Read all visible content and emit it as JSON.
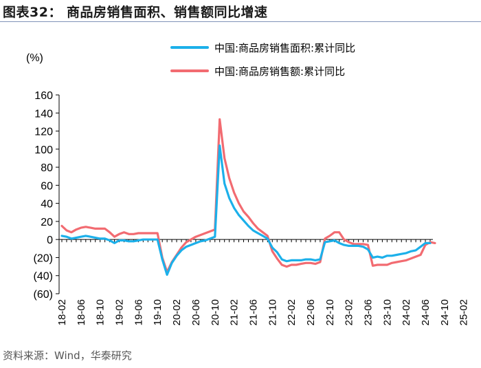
{
  "figure": {
    "title": "图表32：   商品房销售面积、销售额同比增速",
    "source": "资料来源：Wind，华泰研究"
  },
  "chart_data": {
    "type": "line",
    "title": "",
    "ylabel": "(%)",
    "xlabel": "",
    "ylim": [
      -60,
      160
    ],
    "y_ticks": [
      160,
      140,
      120,
      100,
      80,
      60,
      40,
      20,
      0,
      -20,
      -40,
      -60
    ],
    "y_tick_labels": [
      "160",
      "140",
      "120",
      "100",
      "80",
      "60",
      "40",
      "20",
      "0",
      "(20)",
      "(40)",
      "(60)"
    ],
    "x_tick_labels": [
      "18-02",
      "18-06",
      "18-10",
      "19-02",
      "19-06",
      "19-10",
      "20-02",
      "20-06",
      "20-10",
      "21-02",
      "21-06",
      "21-10",
      "22-02",
      "22-06",
      "22-10",
      "23-02",
      "23-06",
      "23-10",
      "24-02",
      "24-06",
      "24-10",
      "25-02"
    ],
    "legend_position": "top-right",
    "grid": false,
    "series": [
      {
        "name": "中国:商品房销售面积:累计同比",
        "color": "#1cb0ea",
        "values": [
          4,
          3,
          1,
          2,
          3,
          4,
          3,
          2,
          1,
          1,
          -1,
          -4,
          -1,
          -1,
          -2,
          -2,
          -1,
          0,
          0,
          0,
          0,
          -22,
          -39,
          -26,
          -18,
          -12,
          -8,
          -6,
          -4,
          -2,
          -1,
          1,
          3,
          104,
          62,
          46,
          35,
          27,
          21,
          15,
          10,
          7,
          4,
          1,
          -9,
          -14,
          -22,
          -24,
          -23,
          -23,
          -23,
          -22,
          -22,
          -23,
          -22,
          -3,
          -2,
          -1,
          -4,
          -6,
          -7,
          -7,
          -7,
          -8,
          -11,
          -20,
          -19,
          -20,
          -18,
          -18,
          -17,
          -16,
          -15,
          -13,
          -12,
          -8,
          -4,
          -4
        ],
        "labels": []
      },
      {
        "name": "中国:商品房销售额:累计同比",
        "color": "#f26b71",
        "values": [
          15,
          10,
          8,
          11,
          13,
          14,
          13,
          12,
          12,
          12,
          8,
          3,
          6,
          8,
          6,
          6,
          7,
          7,
          7,
          7,
          7,
          -20,
          -36,
          -25,
          -17,
          -9,
          -3,
          0,
          3,
          5,
          7,
          9,
          11,
          133,
          90,
          68,
          52,
          40,
          31,
          25,
          18,
          12,
          8,
          4,
          -13,
          -21,
          -28,
          -30,
          -28,
          -28,
          -27,
          -26,
          -26,
          -27,
          -25,
          1,
          4,
          8,
          8,
          0,
          -3,
          -5,
          -5,
          -5,
          -6,
          -29,
          -28,
          -28,
          -28,
          -26,
          -25,
          -24,
          -23,
          -21,
          -19,
          -17,
          -6,
          -3,
          -4
        ],
        "labels": []
      }
    ]
  }
}
